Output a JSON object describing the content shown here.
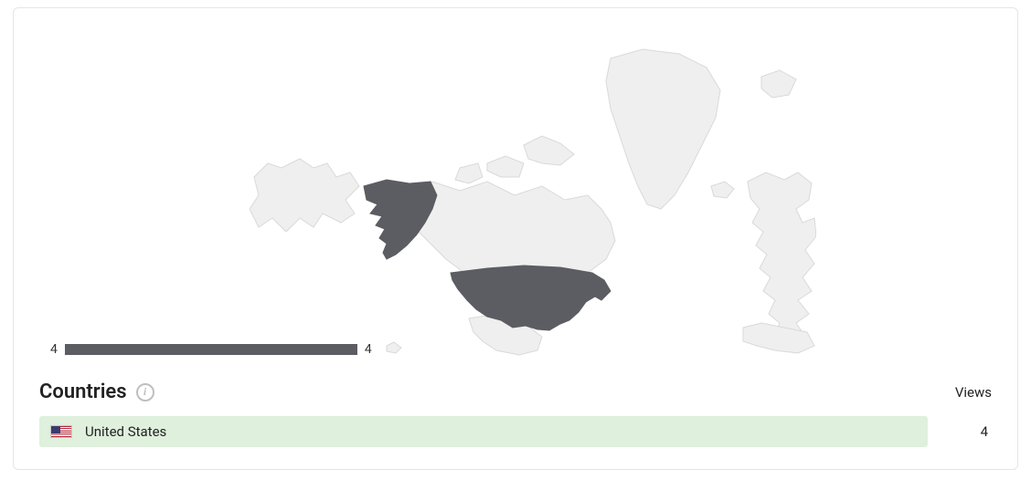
{
  "map": {
    "neutral_fill": "#efefef",
    "neutral_stroke": "#d9d9d9",
    "highlight_fill": "#5b5d62",
    "legend": {
      "min_label": "4",
      "max_label": "4",
      "bar_color": "#5b5d62"
    }
  },
  "section": {
    "title": "Countries",
    "views_header": "Views"
  },
  "rows": [
    {
      "country": "United States",
      "views": "4",
      "row_bg": "#dff0dd"
    }
  ]
}
